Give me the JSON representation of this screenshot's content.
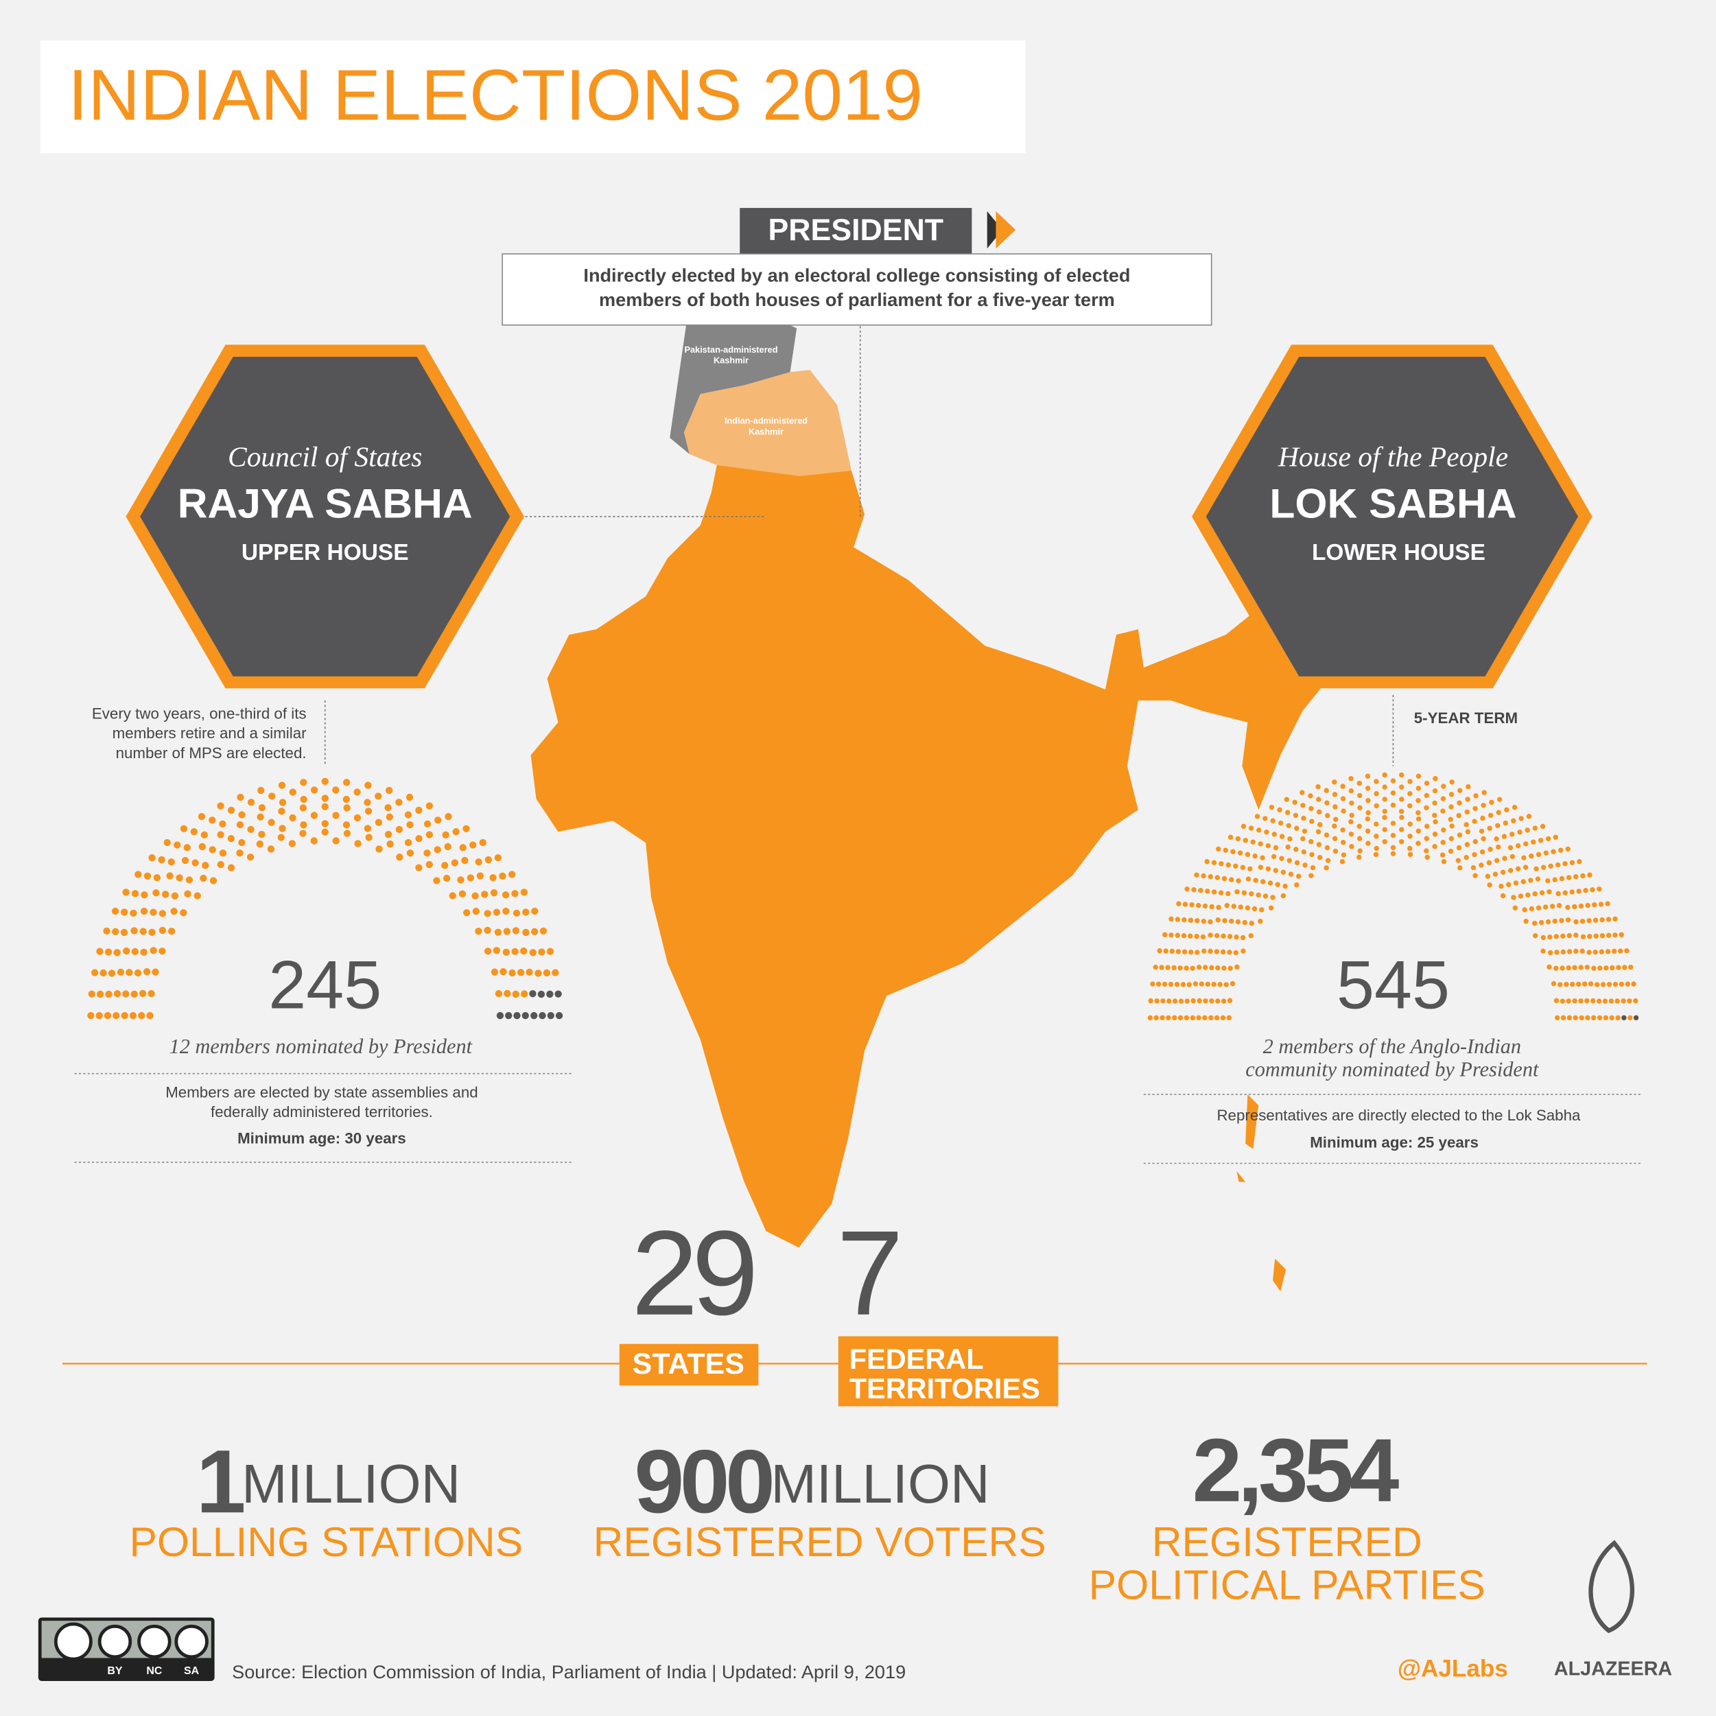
{
  "header": {
    "title": "INDIAN ELECTIONS 2019"
  },
  "president": {
    "label": "PRESIDENT",
    "description": [
      "Indirectly elected by an electoral college consisting of elected",
      "members of both houses of parliament for a five-year term"
    ]
  },
  "map": {
    "labels": [
      [
        "Pakistan-administered",
        "Kashmir"
      ],
      [
        "Indian-administered",
        "Kashmir"
      ]
    ]
  },
  "rajya_sabha": {
    "subtitle": "Council of States",
    "name": "RAJYA SABHA",
    "house": "UPPER HOUSE",
    "note": [
      "Every two years, one-third of its",
      "members retire and a similar",
      "number of MPS are elected."
    ],
    "seats": 245,
    "nominated": 12,
    "nominated_note": [
      "12 members nominated by President"
    ],
    "election": [
      "Members are elected by state assemblies and",
      "federally administered territories."
    ],
    "min_age": "Minimum age: 30 years"
  },
  "lok_sabha": {
    "subtitle": "House of the People",
    "name": "LOK SABHA",
    "house": "LOWER HOUSE",
    "term": "5-YEAR  TERM",
    "seats": 545,
    "nominated": 2,
    "nominated_note": [
      "2 members of the  Anglo-Indian",
      "community nominated by President"
    ],
    "election": [
      "Representatives are directly elected to the Lok Sabha"
    ],
    "min_age": "Minimum age: 25 years"
  },
  "divisions": [
    {
      "number": 29,
      "label": [
        "STATES"
      ]
    },
    {
      "number": 7,
      "label": [
        "FEDERAL",
        "TERRITORIES"
      ]
    }
  ],
  "stats": [
    {
      "number": "1",
      "unit": "MILLION",
      "label": [
        "POLLING STATIONS"
      ]
    },
    {
      "number": "900",
      "unit": "MILLION",
      "label": [
        "REGISTERED VOTERS"
      ]
    },
    {
      "number": "2,354",
      "label": [
        "REGISTERED",
        "POLITICAL PARTIES"
      ]
    }
  ],
  "footer": {
    "license": [
      "BY",
      "NC",
      "SA"
    ],
    "source": "Source:  Election Commission of India,  Parliament of India  |  Updated: April 9, 2019",
    "handle": "@AJLabs",
    "brand": "ALJAZEERA"
  }
}
